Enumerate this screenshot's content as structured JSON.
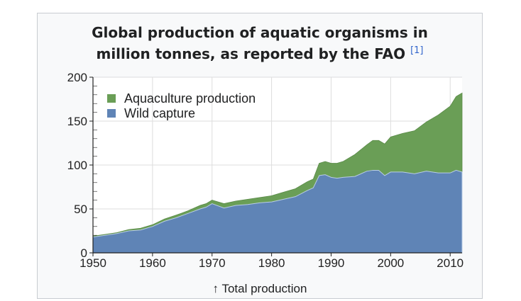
{
  "figure": {
    "title_line1": "Global production of aquatic organisms in",
    "title_line2": "million tonnes, as reported by the FAO",
    "reference": "[1]",
    "caption": "↑ Total production"
  },
  "colors": {
    "aquaculture": "#6a9e56",
    "wild_capture": "#5f84b6",
    "grid": "#dddddd",
    "axis": "#222222"
  },
  "chart_data": {
    "type": "area",
    "stacked": true,
    "legend_position": "top-left",
    "grid": true,
    "xlim": [
      1950,
      2012
    ],
    "ylim": [
      0,
      200
    ],
    "x_ticks": [
      1950,
      1960,
      1970,
      1980,
      1990,
      2000,
      2010
    ],
    "y_ticks": [
      0,
      50,
      100,
      150,
      200
    ],
    "x": [
      1950,
      1952,
      1954,
      1956,
      1958,
      1960,
      1962,
      1964,
      1966,
      1968,
      1969,
      1970,
      1972,
      1974,
      1976,
      1978,
      1980,
      1982,
      1984,
      1986,
      1987,
      1988,
      1989,
      1990,
      1991,
      1992,
      1994,
      1996,
      1997,
      1998,
      1999,
      2000,
      2002,
      2004,
      2006,
      2008,
      2010,
      2011,
      2012
    ],
    "series": [
      {
        "name": "Wild capture",
        "values": [
          18,
          20,
          22,
          25,
          26,
          30,
          36,
          40,
          45,
          50,
          52,
          56,
          51,
          54,
          55,
          57,
          58,
          61,
          64,
          71,
          74,
          88,
          89,
          86,
          85,
          86,
          87,
          93,
          94,
          94,
          88,
          92,
          92,
          90,
          93,
          91,
          91,
          94,
          92
        ]
      },
      {
        "name": "Aquaculture production",
        "values": [
          1,
          1,
          1,
          1.5,
          2,
          2,
          2.5,
          3,
          3,
          4,
          4,
          4,
          5,
          5,
          6,
          6,
          7,
          8,
          9,
          10,
          10,
          14,
          15,
          16,
          17,
          18,
          25,
          30,
          34,
          34,
          36,
          40,
          44,
          49,
          56,
          66,
          76,
          84,
          90
        ]
      }
    ],
    "caption": "↑ Total production"
  }
}
